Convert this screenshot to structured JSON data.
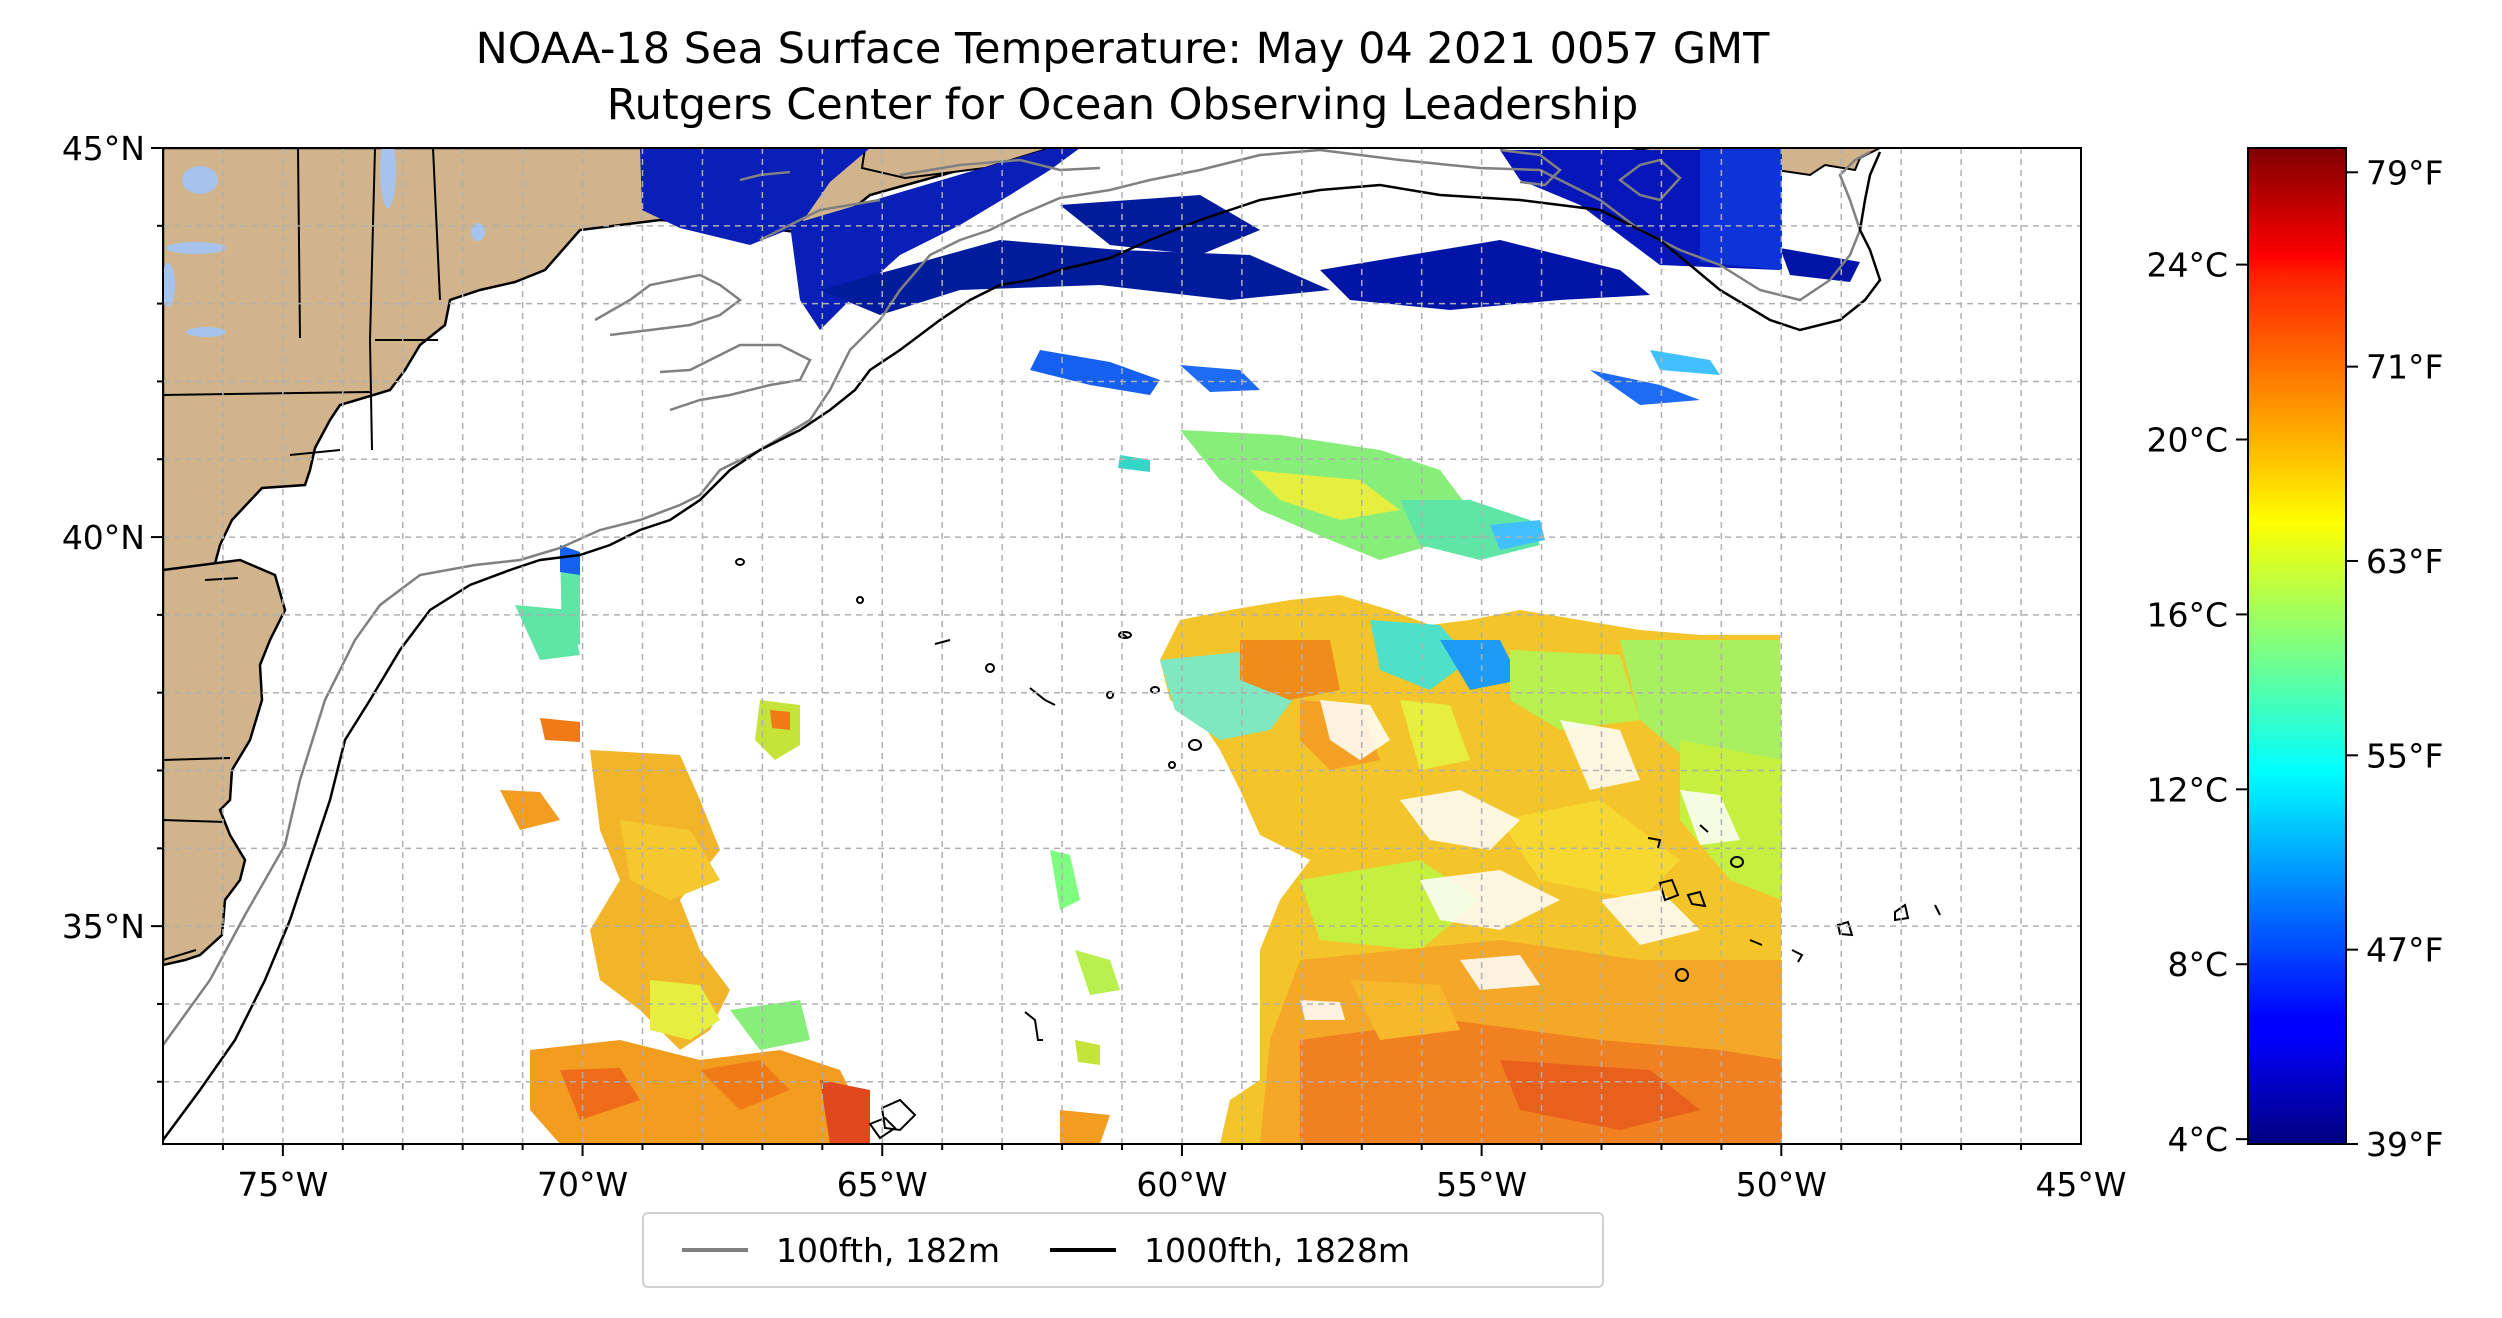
{
  "title": {
    "line1": "NOAA-18 Sea Surface Temperature: May 04 2021 0057 GMT",
    "line2": "Rutgers Center for Ocean Observing Leadership"
  },
  "map": {
    "lon_range": [
      -77,
      -45
    ],
    "lat_range": [
      32.2,
      45
    ],
    "lon_ticks": [
      {
        "value": -75,
        "label": "75°W"
      },
      {
        "value": -70,
        "label": "70°W"
      },
      {
        "value": -65,
        "label": "65°W"
      },
      {
        "value": -60,
        "label": "60°W"
      },
      {
        "value": -55,
        "label": "55°W"
      },
      {
        "value": -50,
        "label": "50°W"
      },
      {
        "value": -45,
        "label": "45°W"
      }
    ],
    "lat_ticks": [
      {
        "value": 45,
        "label": "45°N"
      },
      {
        "value": 40,
        "label": "40°N"
      },
      {
        "value": 35,
        "label": "35°N"
      }
    ],
    "gridlines": true,
    "land_color": "#d2b48c",
    "lake_color": "#a5c3ec",
    "no_data_color": "#ffffff"
  },
  "legend": {
    "placement": "bottom-center",
    "items": [
      {
        "label": "100fth, 182m",
        "color": "#808080"
      },
      {
        "label": "1000fth, 1828m",
        "color": "#000000"
      }
    ]
  },
  "colorbar": {
    "colormap": "jet",
    "range_f": [
      39,
      80
    ],
    "celsius_ticks": [
      {
        "value_c": 4,
        "label": "4°C"
      },
      {
        "value_c": 8,
        "label": "8°C"
      },
      {
        "value_c": 12,
        "label": "12°C"
      },
      {
        "value_c": 16,
        "label": "16°C"
      },
      {
        "value_c": 20,
        "label": "20°C"
      },
      {
        "value_c": 24,
        "label": "24°C"
      }
    ],
    "fahrenheit_ticks": [
      {
        "value_f": 39,
        "label": "39°F"
      },
      {
        "value_f": 47,
        "label": "47°F"
      },
      {
        "value_f": 55,
        "label": "55°F"
      },
      {
        "value_f": 63,
        "label": "63°F"
      },
      {
        "value_f": 71,
        "label": "71°F"
      },
      {
        "value_f": 79,
        "label": "79°F"
      }
    ]
  }
}
